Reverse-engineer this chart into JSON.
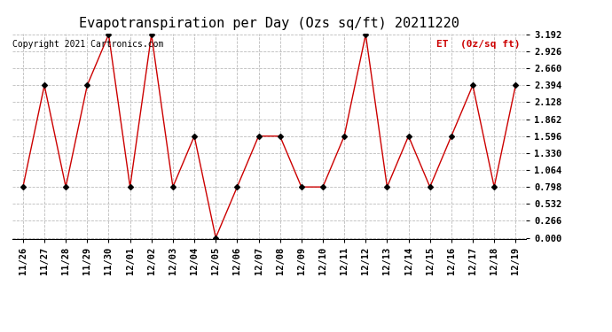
{
  "title": "Evapotranspiration per Day (Ozs sq/ft) 20211220",
  "legend_label": "ET  (0z/sq ft)",
  "copyright_text": "Copyright 2021 Cartronics.com",
  "x_labels": [
    "11/26",
    "11/27",
    "11/28",
    "11/29",
    "11/30",
    "12/01",
    "12/02",
    "12/03",
    "12/04",
    "12/05",
    "12/06",
    "12/07",
    "12/08",
    "12/09",
    "12/10",
    "12/11",
    "12/12",
    "12/13",
    "12/14",
    "12/15",
    "12/16",
    "12/17",
    "12/18",
    "12/19"
  ],
  "y_values": [
    0.798,
    2.394,
    0.798,
    2.394,
    3.192,
    0.798,
    3.192,
    0.798,
    1.596,
    0.0,
    0.798,
    1.596,
    1.596,
    0.798,
    0.798,
    1.596,
    3.192,
    0.798,
    1.596,
    0.798,
    1.596,
    2.394,
    0.798,
    2.394
  ],
  "y_min": 0.0,
  "y_max": 3.192,
  "y_ticks": [
    0.0,
    0.266,
    0.532,
    0.798,
    1.064,
    1.33,
    1.596,
    1.862,
    2.128,
    2.394,
    2.66,
    2.926,
    3.192
  ],
  "line_color": "#cc0000",
  "marker_color": "#000000",
  "grid_color": "#bbbbbb",
  "background_color": "#ffffff",
  "title_fontsize": 11,
  "legend_color": "#cc0000",
  "copyright_color": "#000000"
}
